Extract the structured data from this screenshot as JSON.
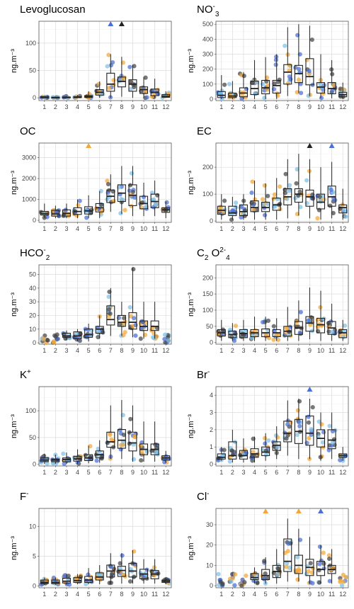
{
  "colors": {
    "point_palette": [
      "#f3a73a",
      "#4a6fd6",
      "#7fc1e8",
      "#444444"
    ],
    "box": "#222222",
    "grid": "#dcdcdc"
  },
  "chart_data": [
    {
      "type": "box",
      "title": "Levoglucosan",
      "title_sub": "",
      "title_sup": "",
      "ylabel": "ng.m⁻³",
      "ylim": [
        -5,
        140
      ],
      "yticks": [
        0,
        50,
        100
      ],
      "categories": [
        "1",
        "2",
        "3",
        "4",
        "5",
        "6",
        "7",
        "8",
        "9",
        "10",
        "11",
        "12"
      ],
      "median": [
        1,
        0.5,
        0.5,
        1,
        2,
        10,
        25,
        30,
        25,
        15,
        10,
        3
      ],
      "q1": [
        0.2,
        0.2,
        0.2,
        0.3,
        0.8,
        5,
        12,
        20,
        12,
        8,
        4,
        1
      ],
      "q3": [
        2,
        1,
        1.5,
        2,
        4,
        15,
        45,
        38,
        33,
        20,
        16,
        6
      ],
      "wmin": [
        0,
        0,
        0,
        0,
        0,
        0,
        0,
        2,
        0,
        0,
        0,
        0
      ],
      "wmax": [
        3,
        2,
        3,
        5,
        12,
        30,
        80,
        75,
        60,
        38,
        35,
        12
      ],
      "outliers_above": [
        {
          "x": "7",
          "color": "#4a6fd6"
        },
        {
          "x": "8",
          "color": "#222222"
        }
      ]
    },
    {
      "type": "box",
      "title": "NO",
      "title_sub": "3",
      "title_sup": "-",
      "ylabel": "ng.m⁻³",
      "ylim": [
        -10,
        520
      ],
      "yticks": [
        0,
        100,
        200,
        300,
        400,
        500
      ],
      "categories": [
        "1",
        "2",
        "3",
        "4",
        "5",
        "6",
        "7",
        "8",
        "9",
        "10",
        "11",
        "12"
      ],
      "median": [
        25,
        20,
        40,
        70,
        75,
        90,
        180,
        170,
        150,
        80,
        70,
        30
      ],
      "q1": [
        10,
        10,
        15,
        30,
        35,
        40,
        100,
        110,
        95,
        40,
        35,
        15
      ],
      "q3": [
        50,
        40,
        75,
        120,
        125,
        125,
        230,
        225,
        270,
        110,
        110,
        45
      ],
      "wmin": [
        0,
        0,
        0,
        0,
        0,
        0,
        20,
        40,
        20,
        5,
        5,
        0
      ],
      "wmax": [
        160,
        120,
        180,
        260,
        280,
        300,
        480,
        500,
        490,
        300,
        260,
        110
      ],
      "outliers_above": []
    },
    {
      "type": "box",
      "title": "OC",
      "title_sub": "",
      "title_sup": "",
      "ylabel": "ng.m⁻³",
      "ylim": [
        -100,
        3700
      ],
      "yticks": [
        0,
        1000,
        2000,
        3000
      ],
      "categories": [
        "1",
        "2",
        "3",
        "4",
        "5",
        "6",
        "7",
        "8",
        "9",
        "10",
        "11",
        "12"
      ],
      "median": [
        320,
        300,
        330,
        420,
        450,
        600,
        1150,
        1300,
        1200,
        800,
        900,
        500
      ],
      "q1": [
        250,
        200,
        200,
        280,
        300,
        400,
        850,
        900,
        700,
        550,
        600,
        380
      ],
      "q3": [
        420,
        480,
        500,
        600,
        650,
        800,
        1450,
        1700,
        1700,
        1150,
        1250,
        600
      ],
      "wmin": [
        100,
        100,
        100,
        100,
        100,
        100,
        400,
        300,
        200,
        200,
        200,
        100
      ],
      "wmax": [
        800,
        700,
        800,
        1000,
        1200,
        1400,
        2200,
        2600,
        2600,
        1800,
        1900,
        900
      ],
      "outliers_above": [
        {
          "x": "5",
          "color": "#f3a73a"
        }
      ]
    },
    {
      "type": "box",
      "title": "EC",
      "title_sub": "",
      "title_sup": "",
      "ylabel": "ng.m⁻³",
      "ylim": [
        -5,
        290
      ],
      "yticks": [
        0,
        100,
        200
      ],
      "categories": [
        "1",
        "2",
        "3",
        "4",
        "5",
        "6",
        "7",
        "8",
        "9",
        "10",
        "11",
        "12"
      ],
      "median": [
        40,
        30,
        35,
        50,
        50,
        60,
        90,
        100,
        90,
        70,
        90,
        50
      ],
      "q1": [
        25,
        20,
        20,
        35,
        35,
        40,
        60,
        70,
        55,
        45,
        55,
        30
      ],
      "q3": [
        55,
        55,
        60,
        75,
        70,
        85,
        120,
        120,
        115,
        100,
        130,
        60
      ],
      "wmin": [
        5,
        5,
        5,
        5,
        5,
        5,
        10,
        20,
        10,
        5,
        10,
        5
      ],
      "wmax": [
        100,
        90,
        100,
        150,
        140,
        160,
        230,
        250,
        230,
        200,
        220,
        120
      ],
      "outliers_above": [
        {
          "x": "9",
          "color": "#222222"
        },
        {
          "x": "11",
          "color": "#4a6fd6"
        }
      ]
    },
    {
      "type": "box",
      "title": "HCO",
      "title_sub": "2",
      "title_sup": "-",
      "ylabel": "ng.m⁻³",
      "ylim": [
        -1,
        57
      ],
      "yticks": [
        0,
        10,
        20,
        30,
        40,
        50
      ],
      "categories": [
        "1",
        "2",
        "3",
        "4",
        "5",
        "6",
        "7",
        "8",
        "9",
        "10",
        "11",
        "12"
      ],
      "median": [
        null,
        null,
        5,
        5,
        6,
        10,
        17,
        15,
        15,
        12,
        12,
        null
      ],
      "q1": [
        null,
        null,
        4,
        3,
        4,
        7,
        13,
        12,
        10,
        9,
        9,
        null
      ],
      "q3": [
        null,
        null,
        7,
        8,
        10,
        12,
        27,
        20,
        22,
        16,
        16,
        null
      ],
      "wmin": [
        null,
        null,
        2,
        1,
        1,
        3,
        5,
        5,
        4,
        3,
        3,
        null
      ],
      "wmax": [
        null,
        null,
        9,
        10,
        14,
        20,
        40,
        30,
        55,
        30,
        30,
        null
      ],
      "outliers_above": []
    },
    {
      "type": "box",
      "title": "C",
      "title_sub": "2",
      "title_sup": "",
      "title2": " O",
      "title2_sub": "4",
      "title2_sup": "2-",
      "ylabel": "ng.m⁻³",
      "ylim": [
        -5,
        240
      ],
      "yticks": [
        0,
        50,
        100,
        150,
        200
      ],
      "categories": [
        "1",
        "2",
        "3",
        "4",
        "5",
        "6",
        "7",
        "8",
        "9",
        "10",
        "11",
        "12"
      ],
      "median": [
        30,
        25,
        28,
        30,
        30,
        30,
        35,
        45,
        60,
        55,
        45,
        30
      ],
      "q1": [
        20,
        15,
        15,
        18,
        18,
        18,
        20,
        25,
        35,
        30,
        25,
        15
      ],
      "q3": [
        40,
        35,
        40,
        40,
        42,
        40,
        50,
        65,
        80,
        75,
        65,
        40
      ],
      "wmin": [
        5,
        5,
        5,
        5,
        5,
        5,
        5,
        5,
        10,
        5,
        5,
        5
      ],
      "wmax": [
        70,
        60,
        70,
        80,
        80,
        75,
        110,
        130,
        170,
        160,
        120,
        70
      ],
      "outliers_above": []
    },
    {
      "type": "box",
      "title": "K",
      "title_sub": "",
      "title_sup": "+",
      "ylabel": "ng.m⁻³",
      "ylim": [
        -3,
        145
      ],
      "yticks": [
        0,
        50,
        100
      ],
      "categories": [
        "1",
        "2",
        "3",
        "4",
        "5",
        "6",
        "7",
        "8",
        "9",
        "10",
        "11",
        "12"
      ],
      "median": [
        8,
        8,
        9,
        10,
        12,
        18,
        42,
        45,
        40,
        28,
        28,
        12
      ],
      "q1": [
        5,
        5,
        5,
        6,
        7,
        12,
        32,
        30,
        25,
        18,
        18,
        8
      ],
      "q3": [
        12,
        10,
        12,
        15,
        18,
        25,
        60,
        65,
        60,
        38,
        38,
        16
      ],
      "wmin": [
        1,
        1,
        1,
        1,
        2,
        3,
        10,
        10,
        5,
        5,
        5,
        3
      ],
      "wmax": [
        20,
        18,
        22,
        28,
        35,
        45,
        110,
        120,
        110,
        80,
        80,
        25
      ],
      "outliers_above": []
    },
    {
      "type": "box",
      "title": "Br",
      "title_sub": "",
      "title_sup": "-",
      "ylabel": "ng.m⁻³",
      "ylim": [
        -0.1,
        4.5
      ],
      "yticks": [
        0,
        1,
        2,
        3,
        4
      ],
      "categories": [
        "1",
        "2",
        "3",
        "4",
        "5",
        "6",
        "7",
        "8",
        "9",
        "10",
        "11",
        "12"
      ],
      "median": [
        0.4,
        0.5,
        0.5,
        0.6,
        0.7,
        1.1,
        1.8,
        1.9,
        1.8,
        1.5,
        1.4,
        0.5
      ],
      "q1": [
        0.3,
        0.3,
        0.3,
        0.4,
        0.5,
        0.8,
        1.3,
        1.2,
        1.1,
        1.0,
        0.9,
        0.4
      ],
      "q3": [
        0.6,
        1.3,
        0.8,
        0.9,
        1.0,
        1.3,
        2.5,
        2.6,
        2.8,
        2.0,
        2.0,
        0.6
      ],
      "wmin": [
        0.2,
        0.1,
        0.1,
        0.1,
        0.2,
        0.3,
        0.5,
        0.3,
        0.3,
        0.2,
        0.3,
        0.2
      ],
      "wmax": [
        1.0,
        2.0,
        1.5,
        1.6,
        1.8,
        2.2,
        3.7,
        3.8,
        3.8,
        3.0,
        3.0,
        1.0
      ],
      "outliers_above": [
        {
          "x": "9",
          "color": "#4a6fd6"
        }
      ]
    },
    {
      "type": "box",
      "title": "F",
      "title_sub": "",
      "title_sup": "-",
      "ylabel": "ng.m⁻³",
      "ylim": [
        -0.3,
        13
      ],
      "yticks": [
        0,
        5,
        10
      ],
      "categories": [
        "1",
        "2",
        "3",
        "4",
        "5",
        "6",
        "7",
        "8",
        "9",
        "10",
        "11",
        "12"
      ],
      "median": [
        0.6,
        0.6,
        0.8,
        0.9,
        1.0,
        1.5,
        2.5,
        2.6,
        2.5,
        2.0,
        2.0,
        0.8
      ],
      "q1": [
        0.4,
        0.4,
        0.5,
        0.6,
        0.6,
        1.0,
        1.5,
        1.6,
        1.5,
        1.2,
        1.2,
        0.6
      ],
      "q3": [
        1.0,
        1.0,
        1.3,
        1.4,
        1.6,
        2.2,
        3.5,
        3.3,
        3.8,
        2.8,
        2.6,
        1.0
      ],
      "wmin": [
        0.2,
        0.2,
        0.2,
        0.3,
        0.3,
        0.3,
        0.4,
        0.4,
        0.4,
        0.4,
        0.4,
        0.3
      ],
      "wmax": [
        1.4,
        1.4,
        2.0,
        2.0,
        3.0,
        3.5,
        5.5,
        5.5,
        6.0,
        4.5,
        4.5,
        1.4
      ],
      "outliers_above": []
    },
    {
      "type": "box",
      "title": "Cl",
      "title_sub": "",
      "title_sup": "-",
      "ylabel": "ng.m⁻³",
      "ylim": [
        -1,
        38
      ],
      "yticks": [
        0,
        10,
        20,
        30
      ],
      "categories": [
        "1",
        "2",
        "3",
        "4",
        "5",
        "6",
        "7",
        "8",
        "9",
        "10",
        "11",
        "12"
      ],
      "median": [
        null,
        null,
        null,
        4,
        5,
        7,
        12,
        10,
        9,
        8,
        8,
        null
      ],
      "q1": [
        null,
        null,
        null,
        3,
        3,
        4,
        7,
        6,
        5,
        5,
        6,
        null
      ],
      "q3": [
        null,
        null,
        null,
        6,
        8,
        10,
        23,
        15,
        13,
        12,
        10,
        null
      ],
      "wmin": [
        null,
        null,
        null,
        1,
        1,
        1,
        2,
        2,
        1,
        1,
        1,
        null
      ],
      "wmax": [
        null,
        null,
        null,
        9,
        14,
        18,
        33,
        28,
        24,
        20,
        18,
        null
      ],
      "outliers_above": [
        {
          "x": "5",
          "color": "#f3a73a"
        },
        {
          "x": "8",
          "color": "#f3a73a"
        },
        {
          "x": "10",
          "color": "#4a6fd6"
        }
      ]
    }
  ]
}
